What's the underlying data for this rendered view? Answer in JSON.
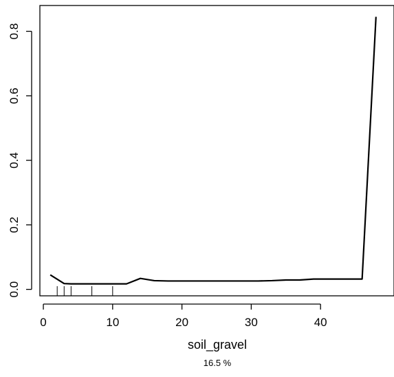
{
  "chart_data": {
    "type": "line",
    "title": "",
    "xlabel": "soil_gravel",
    "ylabel": "",
    "subtitle": "16.5 %",
    "xlim": [
      -0.5,
      50.6
    ],
    "ylim": [
      -0.02,
      0.88
    ],
    "x_ticks": [
      0,
      10,
      20,
      30,
      40
    ],
    "y_ticks": [
      0.0,
      0.2,
      0.4,
      0.6,
      0.8
    ],
    "x_tick_labels": [
      "0",
      "10",
      "20",
      "30",
      "40"
    ],
    "y_tick_labels": [
      "0.0",
      "0.2",
      "0.4",
      "0.6",
      "0.8"
    ],
    "grid": false,
    "legend": "none",
    "line_color": "#000000",
    "series": [
      {
        "x": [
          1,
          3,
          4,
          10,
          12,
          14,
          16,
          18,
          20,
          25,
          31,
          33,
          35,
          37,
          39,
          41,
          43,
          46,
          48
        ],
        "y": [
          0.045,
          0.018,
          0.017,
          0.017,
          0.017,
          0.034,
          0.027,
          0.026,
          0.026,
          0.026,
          0.026,
          0.027,
          0.029,
          0.029,
          0.032,
          0.032,
          0.032,
          0.032,
          0.845
        ]
      }
    ],
    "rug": [
      2,
      3,
      4,
      7,
      10
    ]
  }
}
